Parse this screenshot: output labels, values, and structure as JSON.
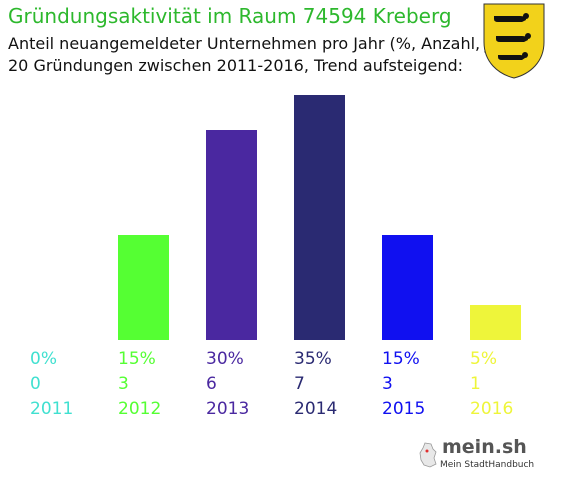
{
  "header": {
    "title": "Gründungsaktivität im Raum 74594 Kreberg",
    "subtitle_line1": "Anteil neuangemeldeter Unternehmen pro Jahr (%, Anzahl, Jahr)",
    "subtitle_line2": "20 Gründungen zwischen 2011-2016, Trend aufsteigend:"
  },
  "logo": {
    "main": "mein.sh",
    "sub": "Mein StadtHandbuch"
  },
  "chart_data": {
    "type": "bar",
    "title": "Gründungsaktivität im Raum 74594 Kreberg",
    "categories": [
      "2011",
      "2012",
      "2013",
      "2014",
      "2015",
      "2016"
    ],
    "percent_labels": [
      "0%",
      "15%",
      "30%",
      "35%",
      "15%",
      "5%"
    ],
    "values": [
      0,
      3,
      6,
      7,
      3,
      1
    ],
    "colors": [
      "#40e0d0",
      "#55ff33",
      "#4a28a0",
      "#2a2a72",
      "#1010f0",
      "#eef53a"
    ],
    "ylim": [
      0,
      7
    ],
    "grid": false,
    "legend": "none"
  }
}
